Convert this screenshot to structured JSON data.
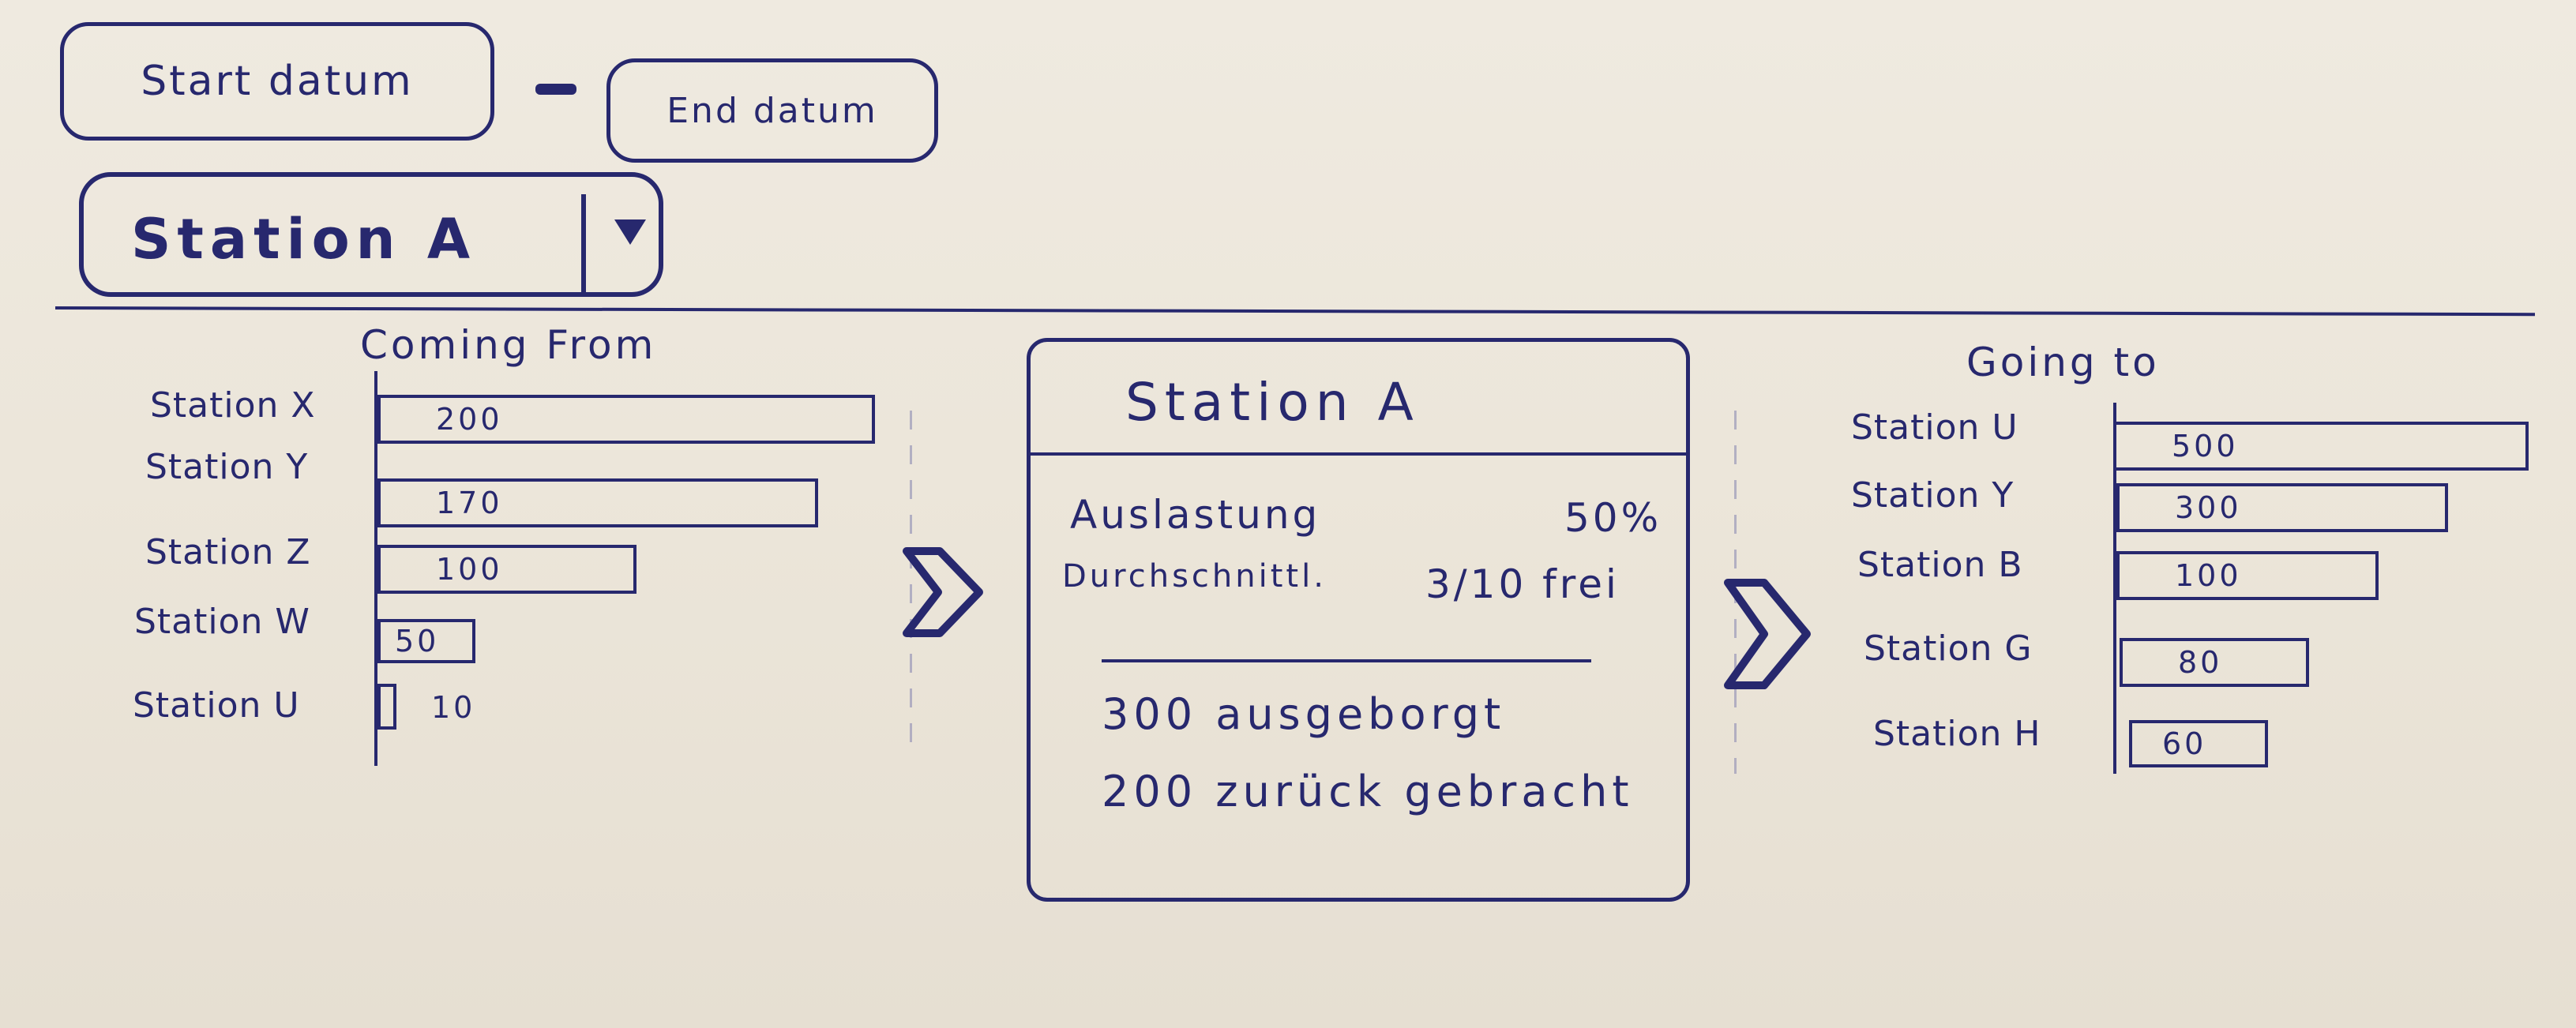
{
  "filters": {
    "start_label": "Start datum",
    "end_label": "End datum",
    "station_value": "Station A"
  },
  "coming_from": {
    "title": "Coming From",
    "items": [
      {
        "label": "Station X",
        "value": "200"
      },
      {
        "label": "Station Y",
        "value": "170"
      },
      {
        "label": "Station Z",
        "value": "100"
      },
      {
        "label": "Station W",
        "value": "50"
      },
      {
        "label": "Station U",
        "value": "10"
      }
    ]
  },
  "station_card": {
    "title": "Station A",
    "auslastung_label": "Auslastung",
    "auslastung_value": "50%",
    "durchschnitt_label": "Durchschnittl.",
    "durchschnitt_value": "3/10 frei",
    "ausgeborgt": "300 ausgeborgt",
    "zurueck": "200 zurück gebracht"
  },
  "going_to": {
    "title": "Going to",
    "items": [
      {
        "label": "Station U",
        "value": "500"
      },
      {
        "label": "Station Y",
        "value": "300"
      },
      {
        "label": "Station B",
        "value": "100"
      },
      {
        "label": "Station G",
        "value": "80"
      },
      {
        "label": "Station H",
        "value": "60"
      }
    ]
  },
  "icons": {
    "dropdown": "triangle-down-icon",
    "flow": "chevron-right-icon"
  },
  "colors": {
    "ink": "#27286e",
    "paper": "#ece6da"
  }
}
